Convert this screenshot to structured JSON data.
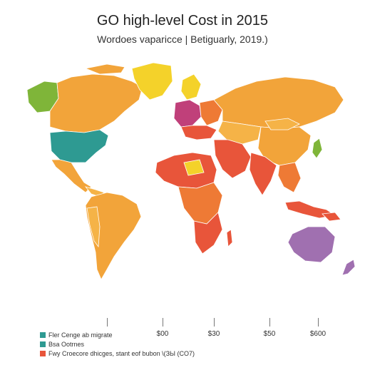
{
  "title": "GO high-level Cost in 2015",
  "subtitle": "Wordoes vaparicce  |  Betiguarly, 2019.)",
  "colors": {
    "orange": "#F2A43A",
    "light_orange": "#F5B347",
    "red": "#E8553A",
    "red_orange": "#EE7A35",
    "teal": "#2E9A92",
    "green": "#7FB539",
    "yellow": "#F4D22A",
    "purple": "#A070B0",
    "magenta": "#C0407A"
  },
  "legend": [
    {
      "label": "Fler Cenge ab migrate",
      "color": "#2E9A92"
    },
    {
      "label": "Bsa Ootrnes",
      "color": "#2E9A92"
    },
    {
      "label": "Fwy Croecore dhicges, stant eof bubon \\(ЗЫ (CO7)",
      "color": "#E8553A"
    }
  ],
  "scale_ticks": [
    "$00",
    "$30",
    "$50",
    "$600"
  ]
}
